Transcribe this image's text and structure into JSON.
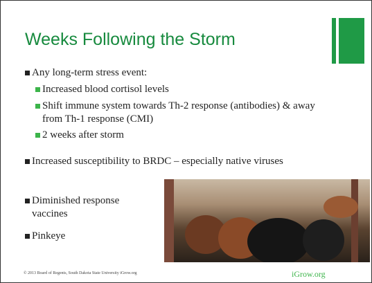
{
  "header": {
    "title": "Weeks Following the Storm"
  },
  "bullets": [
    {
      "text": "Any long-term stress event:",
      "sub": [
        "Increased blood cortisol levels",
        "Shift immune system towards Th-2 response (antibodies) & away from Th-1 response (CMI)",
        "2 weeks after storm"
      ]
    },
    {
      "text": "Increased susceptibility to BRDC – especially native viruses",
      "sub": []
    },
    {
      "text": "Diminished response vaccines",
      "sub": []
    },
    {
      "text": "Pinkeye",
      "sub": []
    }
  ],
  "footer": {
    "copyright": "© 2013 Board of Regents, South Dakota State University   iGrow.org",
    "site": "iGrow.org"
  }
}
